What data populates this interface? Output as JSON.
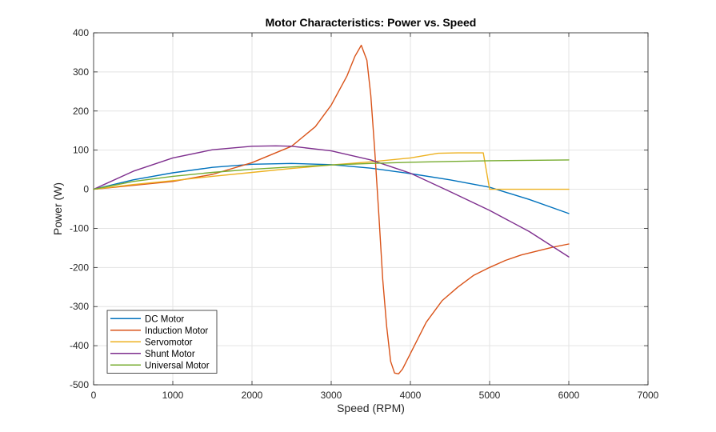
{
  "chart_data": {
    "type": "line",
    "title": "Motor Characteristics: Power vs. Speed",
    "xlabel": "Speed (RPM)",
    "ylabel": "Power (W)",
    "xlim": [
      0,
      7000
    ],
    "ylim": [
      -500,
      400
    ],
    "x_ticks": [
      "0",
      "1000",
      "2000",
      "3000",
      "4000",
      "5000",
      "6000",
      "7000"
    ],
    "y_ticks": [
      "400",
      "300",
      "200",
      "100",
      "0",
      "-100",
      "-200",
      "-300",
      "-400",
      "-500"
    ],
    "grid": true,
    "legend_position": "bottom-left",
    "series": [
      {
        "name": "DC Motor",
        "color": "#0072BD",
        "x": [
          0,
          500,
          1000,
          1500,
          2000,
          2500,
          3000,
          3500,
          4000,
          4500,
          5000,
          5500,
          6000
        ],
        "y": [
          0,
          24,
          42,
          56,
          64,
          66,
          63,
          54,
          40,
          24,
          5,
          -26,
          -62
        ]
      },
      {
        "name": "Induction Motor",
        "color": "#D95319",
        "x": [
          0,
          500,
          1000,
          1500,
          2000,
          2500,
          2800,
          3000,
          3200,
          3300,
          3380,
          3450,
          3500,
          3550,
          3600,
          3650,
          3700,
          3750,
          3800,
          3850,
          3900,
          4000,
          4200,
          4400,
          4600,
          4800,
          5000,
          5200,
          5400,
          5600,
          5800,
          6000
        ],
        "y": [
          0,
          10,
          20,
          38,
          68,
          110,
          160,
          215,
          290,
          340,
          368,
          330,
          240,
          100,
          -60,
          -230,
          -350,
          -440,
          -470,
          -472,
          -460,
          -420,
          -340,
          -285,
          -250,
          -220,
          -200,
          -182,
          -168,
          -158,
          -148,
          -140
        ]
      },
      {
        "name": "Servomotor",
        "color": "#EDB120",
        "x": [
          0,
          500,
          1000,
          1500,
          2000,
          2500,
          3000,
          3500,
          4000,
          4350,
          4600,
          4920,
          5000,
          5500,
          6000
        ],
        "y": [
          0,
          12,
          22,
          33,
          43,
          53,
          62,
          70,
          80,
          92,
          93,
          93,
          0,
          0,
          0
        ]
      },
      {
        "name": "Shunt Motor",
        "color": "#7E2F8E",
        "x": [
          0,
          500,
          1000,
          1500,
          2000,
          2300,
          2500,
          3000,
          3500,
          4000,
          4500,
          5000,
          5500,
          6000
        ],
        "y": [
          0,
          46,
          80,
          101,
          110,
          111,
          110,
          98,
          75,
          41,
          -6,
          -54,
          -108,
          -173
        ]
      },
      {
        "name": "Universal Motor",
        "color": "#77AC30",
        "x": [
          0,
          500,
          1000,
          1500,
          2000,
          2500,
          3000,
          3500,
          4000,
          4500,
          5000,
          5500,
          6000
        ],
        "y": [
          0,
          20,
          33,
          43,
          51,
          57,
          62,
          66,
          69,
          71,
          73,
          74,
          75
        ]
      }
    ]
  }
}
